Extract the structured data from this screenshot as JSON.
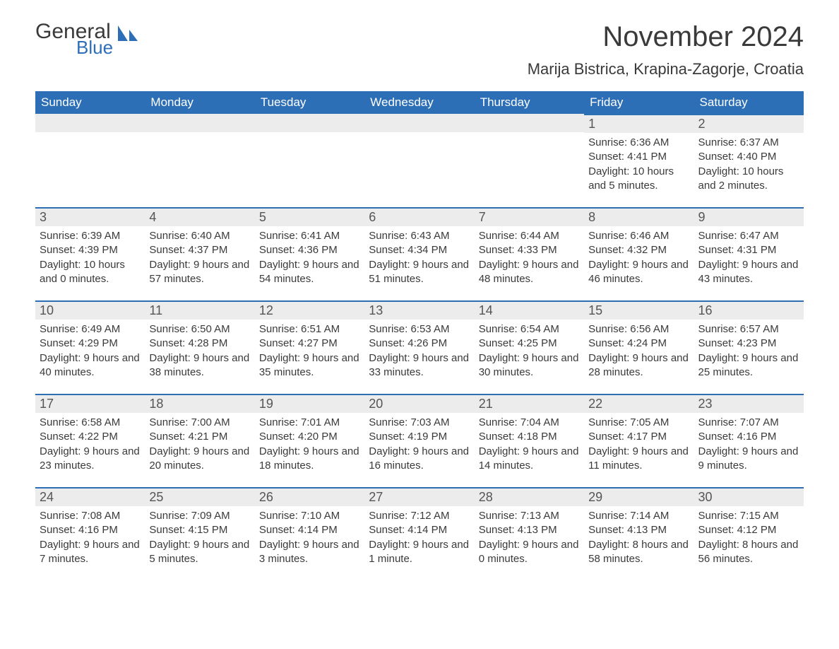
{
  "brand": {
    "line1": "General",
    "line2": "Blue",
    "logo_color": "#2d6fb7"
  },
  "title": "November 2024",
  "location": "Marija Bistrica, Krapina-Zagorje, Croatia",
  "colors": {
    "header_bg": "#2d6fb7",
    "header_text": "#ffffff",
    "daybar_bg": "#ececec",
    "daybar_border": "#2d6fb7",
    "body_text": "#3a3a3a",
    "page_bg": "#ffffff"
  },
  "weekdays": [
    "Sunday",
    "Monday",
    "Tuesday",
    "Wednesday",
    "Thursday",
    "Friday",
    "Saturday"
  ],
  "weeks": [
    [
      null,
      null,
      null,
      null,
      null,
      {
        "num": "1",
        "sunrise": "Sunrise: 6:36 AM",
        "sunset": "Sunset: 4:41 PM",
        "daylight": "Daylight: 10 hours and 5 minutes."
      },
      {
        "num": "2",
        "sunrise": "Sunrise: 6:37 AM",
        "sunset": "Sunset: 4:40 PM",
        "daylight": "Daylight: 10 hours and 2 minutes."
      }
    ],
    [
      {
        "num": "3",
        "sunrise": "Sunrise: 6:39 AM",
        "sunset": "Sunset: 4:39 PM",
        "daylight": "Daylight: 10 hours and 0 minutes."
      },
      {
        "num": "4",
        "sunrise": "Sunrise: 6:40 AM",
        "sunset": "Sunset: 4:37 PM",
        "daylight": "Daylight: 9 hours and 57 minutes."
      },
      {
        "num": "5",
        "sunrise": "Sunrise: 6:41 AM",
        "sunset": "Sunset: 4:36 PM",
        "daylight": "Daylight: 9 hours and 54 minutes."
      },
      {
        "num": "6",
        "sunrise": "Sunrise: 6:43 AM",
        "sunset": "Sunset: 4:34 PM",
        "daylight": "Daylight: 9 hours and 51 minutes."
      },
      {
        "num": "7",
        "sunrise": "Sunrise: 6:44 AM",
        "sunset": "Sunset: 4:33 PM",
        "daylight": "Daylight: 9 hours and 48 minutes."
      },
      {
        "num": "8",
        "sunrise": "Sunrise: 6:46 AM",
        "sunset": "Sunset: 4:32 PM",
        "daylight": "Daylight: 9 hours and 46 minutes."
      },
      {
        "num": "9",
        "sunrise": "Sunrise: 6:47 AM",
        "sunset": "Sunset: 4:31 PM",
        "daylight": "Daylight: 9 hours and 43 minutes."
      }
    ],
    [
      {
        "num": "10",
        "sunrise": "Sunrise: 6:49 AM",
        "sunset": "Sunset: 4:29 PM",
        "daylight": "Daylight: 9 hours and 40 minutes."
      },
      {
        "num": "11",
        "sunrise": "Sunrise: 6:50 AM",
        "sunset": "Sunset: 4:28 PM",
        "daylight": "Daylight: 9 hours and 38 minutes."
      },
      {
        "num": "12",
        "sunrise": "Sunrise: 6:51 AM",
        "sunset": "Sunset: 4:27 PM",
        "daylight": "Daylight: 9 hours and 35 minutes."
      },
      {
        "num": "13",
        "sunrise": "Sunrise: 6:53 AM",
        "sunset": "Sunset: 4:26 PM",
        "daylight": "Daylight: 9 hours and 33 minutes."
      },
      {
        "num": "14",
        "sunrise": "Sunrise: 6:54 AM",
        "sunset": "Sunset: 4:25 PM",
        "daylight": "Daylight: 9 hours and 30 minutes."
      },
      {
        "num": "15",
        "sunrise": "Sunrise: 6:56 AM",
        "sunset": "Sunset: 4:24 PM",
        "daylight": "Daylight: 9 hours and 28 minutes."
      },
      {
        "num": "16",
        "sunrise": "Sunrise: 6:57 AM",
        "sunset": "Sunset: 4:23 PM",
        "daylight": "Daylight: 9 hours and 25 minutes."
      }
    ],
    [
      {
        "num": "17",
        "sunrise": "Sunrise: 6:58 AM",
        "sunset": "Sunset: 4:22 PM",
        "daylight": "Daylight: 9 hours and 23 minutes."
      },
      {
        "num": "18",
        "sunrise": "Sunrise: 7:00 AM",
        "sunset": "Sunset: 4:21 PM",
        "daylight": "Daylight: 9 hours and 20 minutes."
      },
      {
        "num": "19",
        "sunrise": "Sunrise: 7:01 AM",
        "sunset": "Sunset: 4:20 PM",
        "daylight": "Daylight: 9 hours and 18 minutes."
      },
      {
        "num": "20",
        "sunrise": "Sunrise: 7:03 AM",
        "sunset": "Sunset: 4:19 PM",
        "daylight": "Daylight: 9 hours and 16 minutes."
      },
      {
        "num": "21",
        "sunrise": "Sunrise: 7:04 AM",
        "sunset": "Sunset: 4:18 PM",
        "daylight": "Daylight: 9 hours and 14 minutes."
      },
      {
        "num": "22",
        "sunrise": "Sunrise: 7:05 AM",
        "sunset": "Sunset: 4:17 PM",
        "daylight": "Daylight: 9 hours and 11 minutes."
      },
      {
        "num": "23",
        "sunrise": "Sunrise: 7:07 AM",
        "sunset": "Sunset: 4:16 PM",
        "daylight": "Daylight: 9 hours and 9 minutes."
      }
    ],
    [
      {
        "num": "24",
        "sunrise": "Sunrise: 7:08 AM",
        "sunset": "Sunset: 4:16 PM",
        "daylight": "Daylight: 9 hours and 7 minutes."
      },
      {
        "num": "25",
        "sunrise": "Sunrise: 7:09 AM",
        "sunset": "Sunset: 4:15 PM",
        "daylight": "Daylight: 9 hours and 5 minutes."
      },
      {
        "num": "26",
        "sunrise": "Sunrise: 7:10 AM",
        "sunset": "Sunset: 4:14 PM",
        "daylight": "Daylight: 9 hours and 3 minutes."
      },
      {
        "num": "27",
        "sunrise": "Sunrise: 7:12 AM",
        "sunset": "Sunset: 4:14 PM",
        "daylight": "Daylight: 9 hours and 1 minute."
      },
      {
        "num": "28",
        "sunrise": "Sunrise: 7:13 AM",
        "sunset": "Sunset: 4:13 PM",
        "daylight": "Daylight: 9 hours and 0 minutes."
      },
      {
        "num": "29",
        "sunrise": "Sunrise: 7:14 AM",
        "sunset": "Sunset: 4:13 PM",
        "daylight": "Daylight: 8 hours and 58 minutes."
      },
      {
        "num": "30",
        "sunrise": "Sunrise: 7:15 AM",
        "sunset": "Sunset: 4:12 PM",
        "daylight": "Daylight: 8 hours and 56 minutes."
      }
    ]
  ]
}
